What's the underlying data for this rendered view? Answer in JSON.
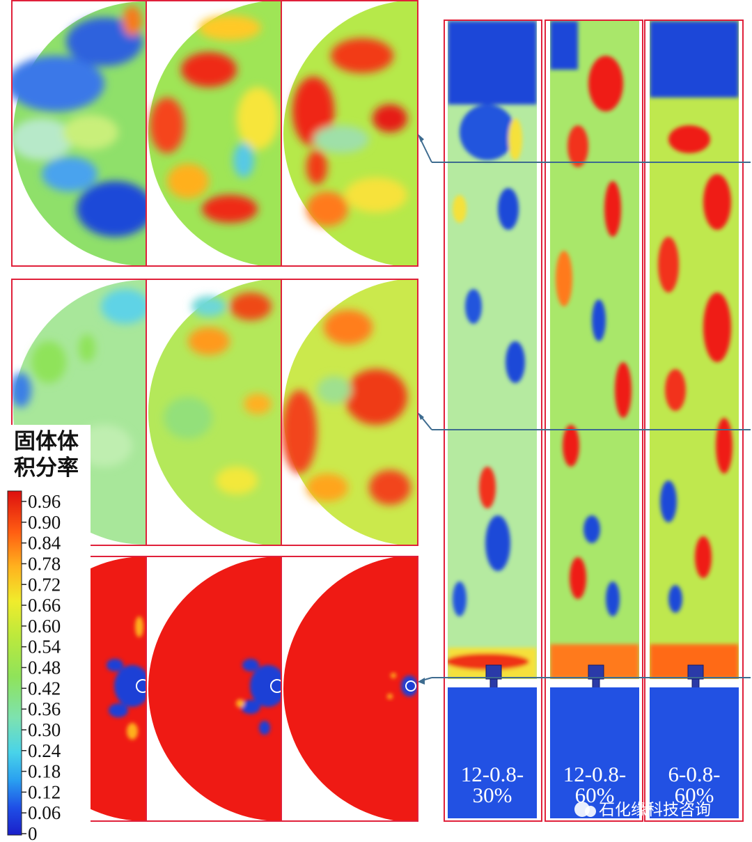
{
  "legend": {
    "title_line1": "固体体",
    "title_line2": "积分率",
    "ticks": [
      "0.96",
      "0.90",
      "0.84",
      "0.78",
      "0.72",
      "0.66",
      "0.60",
      "0.54",
      "0.48",
      "0.42",
      "0.36",
      "0.30",
      "0.24",
      "0.18",
      "0.12",
      "0.06",
      "0"
    ]
  },
  "columns": [
    {
      "line1": "12-0.8-",
      "line2": "30%"
    },
    {
      "line1": "12-0.8-",
      "line2": "60%"
    },
    {
      "line1": "6-0.8-",
      "line2": "60%"
    }
  ],
  "watermark": "石化缘科技咨询",
  "colors": {
    "frame": "#e0203a",
    "pointer": "#3d6b8f",
    "low": "#1b44d9",
    "mid": "#8fe35a",
    "high": "#ef1a14"
  }
}
